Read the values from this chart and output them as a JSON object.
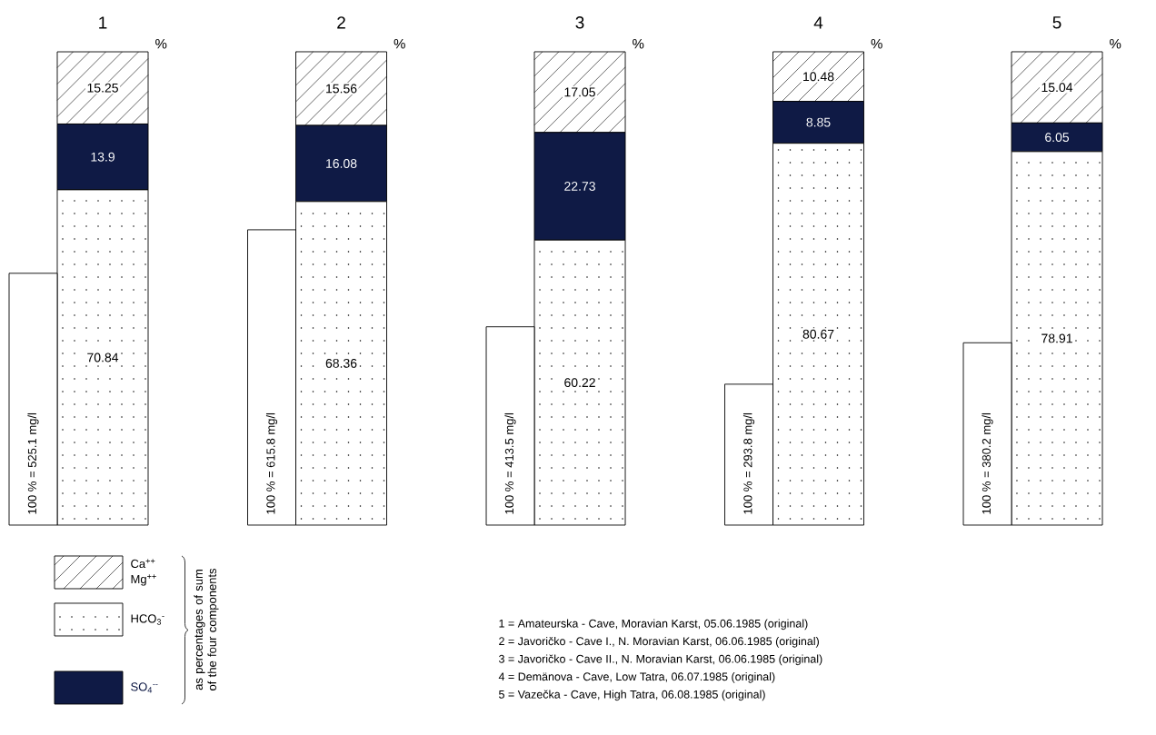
{
  "chart_data": {
    "type": "bar",
    "stacked": true,
    "data_labels": true,
    "categories": [
      "1",
      "2",
      "3",
      "4",
      "5"
    ],
    "ylabel": "%",
    "y2lim": [
      0,
      987
    ],
    "tick_labels": "x",
    "legend": "bottom left",
    "legend_title": "as percentages of sum of the four components",
    "series": [
      {
        "name": "HCO$_{3}$$^{-}$",
        "color": "#000000",
        "values": [
          70.84,
          68.36,
          60.22,
          80.67,
          78.91
        ]
      },
      {
        "name": "SO$_{4}$$^{--}$",
        "color": "#0f1a45",
        "values": [
          13.9,
          16.08,
          22.73,
          8.85,
          6.05
        ]
      },
      {
        "name": "Ca$^{++}$ Mg$^{++}$",
        "color": "#000000",
        "values": [
          15.25,
          15.56,
          17.05,
          10.48,
          15.04
        ]
      },
      {
        "type": "bar",
        "axis": "y2",
        "color": "#ffffff",
        "values": [
          525.1,
          615.8,
          413.5,
          293.8,
          380.2
        ],
        "value_labels": [
          "100 % = 525.1 mg/l",
          "100 % = 615.8 mg/l",
          "100 % = 413.5 mg/l",
          "100 % = 293.8 mg/l",
          "100 % = 380.2 mg/l"
        ]
      }
    ],
    "annotations": [
      "1 = Amateurska - Cave, Moravian Karst, 05.06.1985 (original)",
      "2 = Javoričko - Cave I., N. Moravian Karst, 06.06.1985 (original)",
      "3 = Javoričko - Cave II., N. Moravian Karst, 06.06.1985 (original)",
      "4 = Demänova - Cave, Low Tatra, 06.07.1985 (original)",
      "5 = Vazečka - Cave, High Tatra, 06.08.1985 (original)"
    ]
  }
}
